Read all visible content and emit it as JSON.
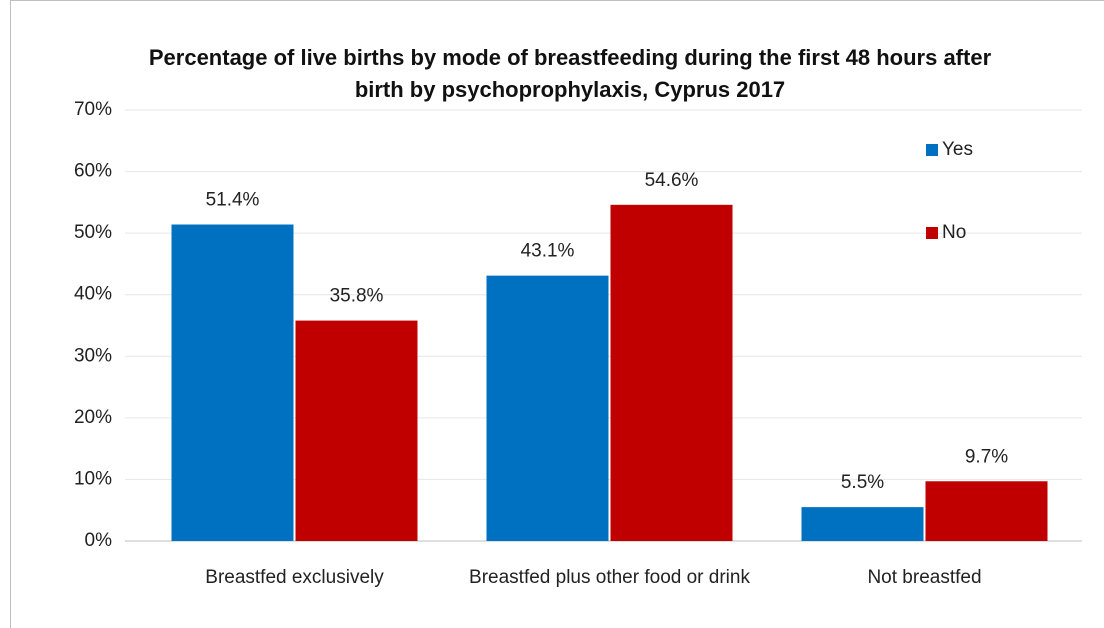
{
  "chart_data": {
    "type": "bar",
    "title": "Percentage of live births by mode of breastfeeding during the first 48 hours after birth by psychoprophylaxis, Cyprus 2017",
    "categories": [
      "Breastfed exclusively",
      "Breastfed plus other food or drink",
      "Not breastfed"
    ],
    "series": [
      {
        "name": "Yes",
        "color": "#0070c0",
        "values": [
          51.4,
          43.1,
          5.5
        ],
        "value_labels": [
          "51.4%",
          "43.1%",
          "5.5%"
        ]
      },
      {
        "name": "No",
        "color": "#c00000",
        "values": [
          35.8,
          54.6,
          9.7
        ],
        "value_labels": [
          "35.8%",
          "54.6%",
          "9.7%"
        ]
      }
    ],
    "ylim": [
      0,
      70
    ],
    "yticks": [
      {
        "value": 0,
        "label": "0%"
      },
      {
        "value": 10,
        "label": "10%"
      },
      {
        "value": 20,
        "label": "20%"
      },
      {
        "value": 30,
        "label": "30%"
      },
      {
        "value": 40,
        "label": "40%"
      },
      {
        "value": 50,
        "label": "50%"
      },
      {
        "value": 60,
        "label": "60%"
      },
      {
        "value": 70,
        "label": "70%"
      }
    ],
    "grid": true,
    "legend": "upper right"
  }
}
